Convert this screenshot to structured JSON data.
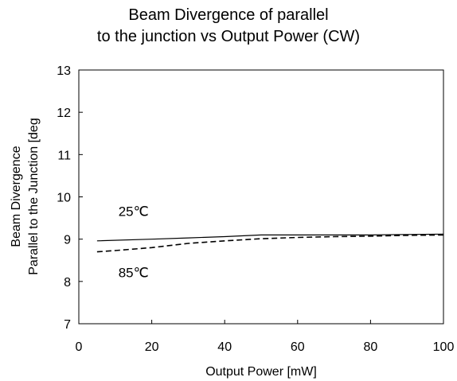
{
  "chart_data": {
    "type": "line",
    "title_line1": "Beam Divergence of parallel",
    "title_line2": "to the junction vs Output Power (CW)",
    "xlabel": "Output Power [mW]",
    "ylabel_line1": "Beam Divergence",
    "ylabel_line2": "Parallel to the Junction  [deg",
    "xlim": [
      0,
      100
    ],
    "ylim": [
      7,
      13
    ],
    "xticks": [
      "0",
      "20",
      "40",
      "60",
      "80",
      "100"
    ],
    "yticks": [
      "7",
      "8",
      "9",
      "10",
      "11",
      "12",
      "13"
    ],
    "grid": false,
    "series": [
      {
        "name": "25℃",
        "style": "solid",
        "color": "#000000",
        "x": [
          5,
          20,
          30,
          40,
          50,
          60,
          70,
          80,
          90,
          100
        ],
        "y": [
          8.96,
          9.0,
          9.03,
          9.06,
          9.1,
          9.1,
          9.1,
          9.1,
          9.11,
          9.12
        ]
      },
      {
        "name": "85℃",
        "style": "dashed",
        "color": "#000000",
        "x": [
          5,
          10,
          20,
          30,
          40,
          50,
          60,
          70,
          80,
          90,
          100
        ],
        "y": [
          8.7,
          8.73,
          8.8,
          8.9,
          8.96,
          9.01,
          9.04,
          9.06,
          9.07,
          9.09,
          9.1
        ]
      }
    ],
    "annotations": [
      {
        "text": "25℃",
        "x": 15,
        "y": 9.55
      },
      {
        "text": "85℃",
        "x": 15,
        "y": 8.1
      }
    ]
  }
}
